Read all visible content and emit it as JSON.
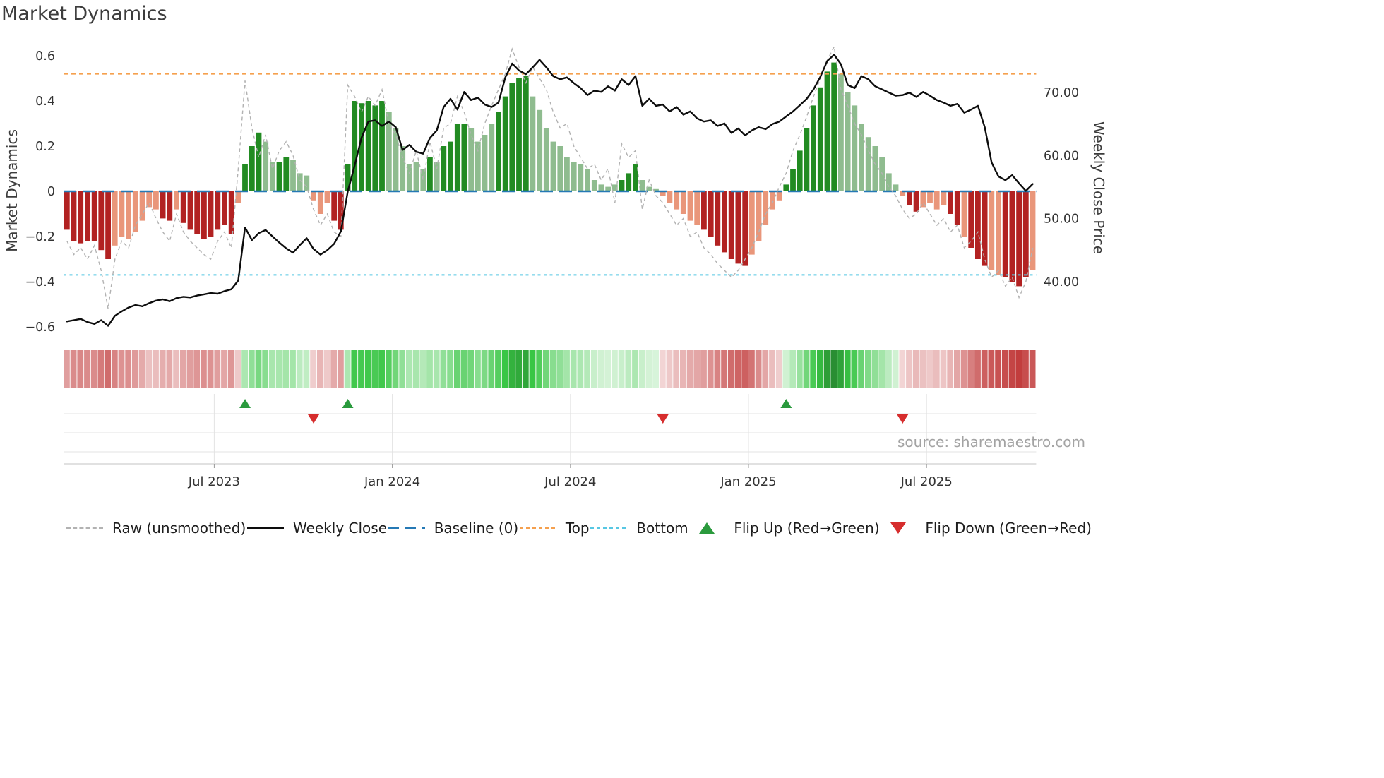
{
  "page": {
    "title": "Market Dynamics",
    "source": "source: sharemaestro.com"
  },
  "legend": {
    "items": [
      {
        "key": "raw",
        "label": "Raw (unsmoothed)"
      },
      {
        "key": "close",
        "label": "Weekly Close"
      },
      {
        "key": "baseline",
        "label": "Baseline (0)"
      },
      {
        "key": "top",
        "label": "Top"
      },
      {
        "key": "bottom",
        "label": "Bottom"
      },
      {
        "key": "flipup",
        "label": "Flip Up (Red→Green)"
      },
      {
        "key": "flipdown",
        "label": "Flip Down (Green→Red)"
      }
    ]
  },
  "colors": {
    "bar_dark_red": "#b22222",
    "bar_light_red": "#e9967a",
    "bar_dark_green": "#228b22",
    "bar_light_green": "#8fbc8f",
    "close_line": "#0d0d0d",
    "raw_line": "#b2b2b2",
    "baseline": "#2579b5",
    "top_line": "#f5a04e",
    "bottom_line": "#57c7e3",
    "flip_up": "#2a9a3d",
    "flip_down": "#d62d2d",
    "grid": "#e3e3e3",
    "axis": "#cfcfcf",
    "tick_text": "#333333"
  },
  "chart_data": {
    "type": "combo",
    "title": "Market Dynamics",
    "granularity": "weekly",
    "x_axis": {
      "n_points": 142,
      "tick_labels": [
        "Jul 2023",
        "Jan 2024",
        "Jul 2024",
        "Jan 2025",
        "Jul 2025"
      ],
      "tick_indices": [
        22,
        48,
        74,
        100,
        126
      ]
    },
    "left_axis": {
      "label": "Market Dynamics",
      "tick_values": [
        0.6,
        0.4,
        0.2,
        0,
        -0.2,
        -0.4,
        -0.6
      ],
      "tick_labels": [
        "0.6",
        "0.4",
        "0.2",
        "0",
        "−0.2",
        "−0.4",
        "−0.6"
      ],
      "range": [
        -0.68,
        0.66
      ]
    },
    "right_axis": {
      "label": "Weekly Close Price",
      "tick_values": [
        70,
        60,
        50,
        40
      ],
      "tick_labels": [
        "70.00",
        "60.00",
        "50.00",
        "40.00"
      ]
    },
    "reference_lines": {
      "baseline": 0,
      "top": 0.52,
      "bottom": -0.37
    },
    "flip_up_indices": [
      26,
      41,
      105
    ],
    "flip_down_indices": [
      36,
      87,
      122
    ],
    "series": {
      "oscillator": [
        -0.17,
        -0.22,
        -0.23,
        -0.22,
        -0.22,
        -0.26,
        -0.3,
        -0.24,
        -0.2,
        -0.21,
        -0.18,
        -0.13,
        -0.07,
        -0.08,
        -0.12,
        -0.13,
        -0.08,
        -0.14,
        -0.17,
        -0.19,
        -0.21,
        -0.2,
        -0.17,
        -0.15,
        -0.19,
        -0.05,
        0.12,
        0.2,
        0.26,
        0.22,
        0.13,
        0.13,
        0.15,
        0.14,
        0.08,
        0.07,
        -0.04,
        -0.1,
        -0.05,
        -0.13,
        -0.17,
        0.12,
        0.4,
        0.39,
        0.4,
        0.38,
        0.4,
        0.35,
        0.28,
        0.2,
        0.12,
        0.13,
        0.1,
        0.15,
        0.13,
        0.2,
        0.22,
        0.3,
        0.3,
        0.28,
        0.22,
        0.25,
        0.3,
        0.35,
        0.42,
        0.48,
        0.5,
        0.51,
        0.42,
        0.36,
        0.28,
        0.22,
        0.2,
        0.15,
        0.13,
        0.12,
        0.1,
        0.05,
        0.03,
        0.02,
        0.03,
        0.05,
        0.08,
        0.12,
        0.05,
        0.02,
        0.01,
        -0.02,
        -0.05,
        -0.08,
        -0.1,
        -0.13,
        -0.15,
        -0.17,
        -0.2,
        -0.24,
        -0.27,
        -0.3,
        -0.32,
        -0.33,
        -0.28,
        -0.22,
        -0.15,
        -0.08,
        -0.04,
        0.03,
        0.1,
        0.18,
        0.28,
        0.38,
        0.46,
        0.53,
        0.57,
        0.52,
        0.44,
        0.38,
        0.3,
        0.24,
        0.2,
        0.15,
        0.08,
        0.03,
        -0.02,
        -0.06,
        -0.09,
        -0.07,
        -0.05,
        -0.08,
        -0.06,
        -0.1,
        -0.15,
        -0.2,
        -0.25,
        -0.3,
        -0.33,
        -0.35,
        -0.37,
        -0.38,
        -0.4,
        -0.42,
        -0.38,
        -0.35
      ],
      "bar_color_class": [
        "dr",
        "dr",
        "dr",
        "dr",
        "dr",
        "dr",
        "dr",
        "lr",
        "lr",
        "lr",
        "lr",
        "lr",
        "lr",
        "lr",
        "dr",
        "dr",
        "lr",
        "dr",
        "dr",
        "dr",
        "dr",
        "dr",
        "dr",
        "dr",
        "dr",
        "lr",
        "dg",
        "dg",
        "dg",
        "lg",
        "lg",
        "dg",
        "dg",
        "lg",
        "lg",
        "lg",
        "lr",
        "lr",
        "lr",
        "dr",
        "dr",
        "dg",
        "dg",
        "dg",
        "dg",
        "dg",
        "dg",
        "lg",
        "lg",
        "lg",
        "lg",
        "lg",
        "lg",
        "dg",
        "lg",
        "dg",
        "dg",
        "dg",
        "dg",
        "lg",
        "lg",
        "lg",
        "lg",
        "dg",
        "dg",
        "dg",
        "dg",
        "dg",
        "lg",
        "lg",
        "lg",
        "lg",
        "lg",
        "lg",
        "lg",
        "lg",
        "lg",
        "lg",
        "lg",
        "lg",
        "lg",
        "dg",
        "dg",
        "dg",
        "lg",
        "lg",
        "lg",
        "lr",
        "lr",
        "lr",
        "lr",
        "lr",
        "lr",
        "dr",
        "dr",
        "dr",
        "dr",
        "dr",
        "dr",
        "dr",
        "lr",
        "lr",
        "lr",
        "lr",
        "lr",
        "dg",
        "dg",
        "dg",
        "dg",
        "dg",
        "dg",
        "dg",
        "dg",
        "lg",
        "lg",
        "lg",
        "lg",
        "lg",
        "lg",
        "lg",
        "lg",
        "lg",
        "lr",
        "dr",
        "dr",
        "lr",
        "lr",
        "lr",
        "lr",
        "dr",
        "dr",
        "lr",
        "dr",
        "dr",
        "dr",
        "lr",
        "lr",
        "dr",
        "dr",
        "dr",
        "dr",
        "lr"
      ],
      "weekly_close": [
        33.7,
        33.9,
        34.1,
        33.6,
        33.3,
        33.9,
        33.0,
        34.6,
        35.3,
        35.9,
        36.3,
        36.1,
        36.6,
        37.0,
        37.2,
        36.9,
        37.4,
        37.6,
        37.5,
        37.8,
        38.0,
        38.2,
        38.1,
        38.5,
        38.8,
        40.2,
        48.6,
        46.6,
        47.7,
        48.2,
        47.2,
        46.2,
        45.3,
        44.6,
        45.8,
        46.9,
        45.2,
        44.3,
        45.0,
        46.0,
        48.0,
        54.3,
        58.4,
        62.8,
        65.4,
        65.6,
        64.7,
        65.4,
        64.5,
        60.9,
        61.7,
        60.6,
        60.3,
        62.8,
        64.0,
        67.7,
        69.0,
        67.3,
        70.1,
        68.8,
        69.2,
        68.1,
        67.7,
        68.4,
        72.4,
        74.6,
        73.5,
        72.9,
        74.0,
        75.2,
        74.0,
        72.6,
        72.1,
        72.4,
        71.5,
        70.7,
        69.6,
        70.3,
        70.1,
        71.0,
        70.3,
        72.1,
        71.2,
        72.6,
        67.9,
        69.0,
        67.9,
        68.1,
        67.0,
        67.7,
        66.5,
        67.0,
        65.9,
        65.4,
        65.6,
        64.7,
        65.1,
        63.6,
        64.3,
        63.2,
        64.0,
        64.5,
        64.2,
        65.0,
        65.4,
        66.2,
        67.0,
        68.0,
        69.0,
        70.5,
        72.5,
        75.0,
        76.0,
        74.5,
        71.2,
        70.7,
        72.6,
        72.1,
        71.0,
        70.5,
        70.0,
        69.5,
        69.6,
        70.0,
        69.3,
        70.1,
        69.5,
        68.8,
        68.4,
        67.9,
        68.2,
        66.8,
        67.3,
        67.9,
        64.5,
        58.9,
        56.7,
        56.1,
        56.9,
        55.6,
        54.4,
        55.5
      ],
      "raw_unsmoothed": [
        -0.22,
        -0.28,
        -0.25,
        -0.3,
        -0.24,
        -0.35,
        -0.52,
        -0.3,
        -0.22,
        -0.25,
        -0.15,
        -0.1,
        -0.05,
        -0.12,
        -0.18,
        -0.22,
        -0.1,
        -0.18,
        -0.22,
        -0.25,
        -0.28,
        -0.3,
        -0.22,
        -0.18,
        -0.25,
        0.1,
        0.49,
        0.28,
        0.15,
        0.25,
        0.1,
        0.18,
        0.22,
        0.16,
        0.05,
        0.02,
        -0.08,
        -0.15,
        -0.1,
        -0.18,
        -0.2,
        0.47,
        0.42,
        0.35,
        0.42,
        0.38,
        0.45,
        0.3,
        0.25,
        0.15,
        0.08,
        0.18,
        0.05,
        0.22,
        0.1,
        0.28,
        0.3,
        0.42,
        0.35,
        0.25,
        0.18,
        0.3,
        0.38,
        0.45,
        0.52,
        0.63,
        0.55,
        0.48,
        0.55,
        0.5,
        0.45,
        0.35,
        0.28,
        0.3,
        0.2,
        0.15,
        0.1,
        0.12,
        0.05,
        0.1,
        -0.05,
        0.21,
        0.15,
        0.18,
        -0.08,
        0.05,
        -0.02,
        -0.05,
        -0.1,
        -0.15,
        -0.12,
        -0.2,
        -0.18,
        -0.25,
        -0.28,
        -0.32,
        -0.35,
        -0.38,
        -0.35,
        -0.3,
        -0.25,
        -0.18,
        -0.1,
        -0.05,
        0.02,
        0.08,
        0.18,
        0.25,
        0.33,
        0.42,
        0.5,
        0.58,
        0.64,
        0.45,
        0.38,
        0.3,
        0.25,
        0.18,
        0.12,
        0.08,
        0.02,
        -0.02,
        -0.08,
        -0.12,
        -0.1,
        -0.05,
        -0.1,
        -0.15,
        -0.12,
        -0.18,
        -0.15,
        -0.25,
        -0.22,
        -0.18,
        -0.3,
        -0.38,
        -0.35,
        -0.42,
        -0.38,
        -0.47,
        -0.4,
        -0.25
      ]
    }
  }
}
